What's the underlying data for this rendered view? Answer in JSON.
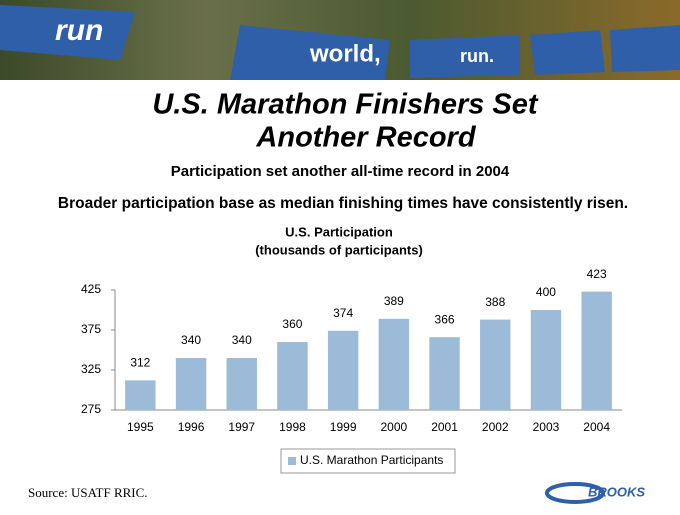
{
  "slide": {
    "banner": [
      "run",
      "world,",
      "run."
    ],
    "title": [
      "U.S. Marathon Finishers Set",
      "Another Record"
    ],
    "subtitles": [
      "Participation set another all-time record in 2004",
      "Broader participation base as median finishing times have consistently risen."
    ],
    "source": "Source: USATF RRIC.",
    "logo": "BROOKS"
  },
  "chart_data": {
    "type": "bar",
    "title": "U.S. Participation",
    "subtitle": "(thousands of participants)",
    "categories": [
      "1995",
      "1996",
      "1997",
      "1998",
      "1999",
      "2000",
      "2001",
      "2002",
      "2003",
      "2004"
    ],
    "series": [
      {
        "name": "U.S. Marathon Participants",
        "color": "#9bbbd9",
        "values": [
          312,
          340,
          340,
          360,
          374,
          389,
          366,
          388,
          400,
          423
        ]
      }
    ],
    "ylim": [
      275,
      425
    ],
    "yticks": [
      275,
      325,
      375,
      425
    ],
    "grid": false,
    "legend": "bottom"
  }
}
